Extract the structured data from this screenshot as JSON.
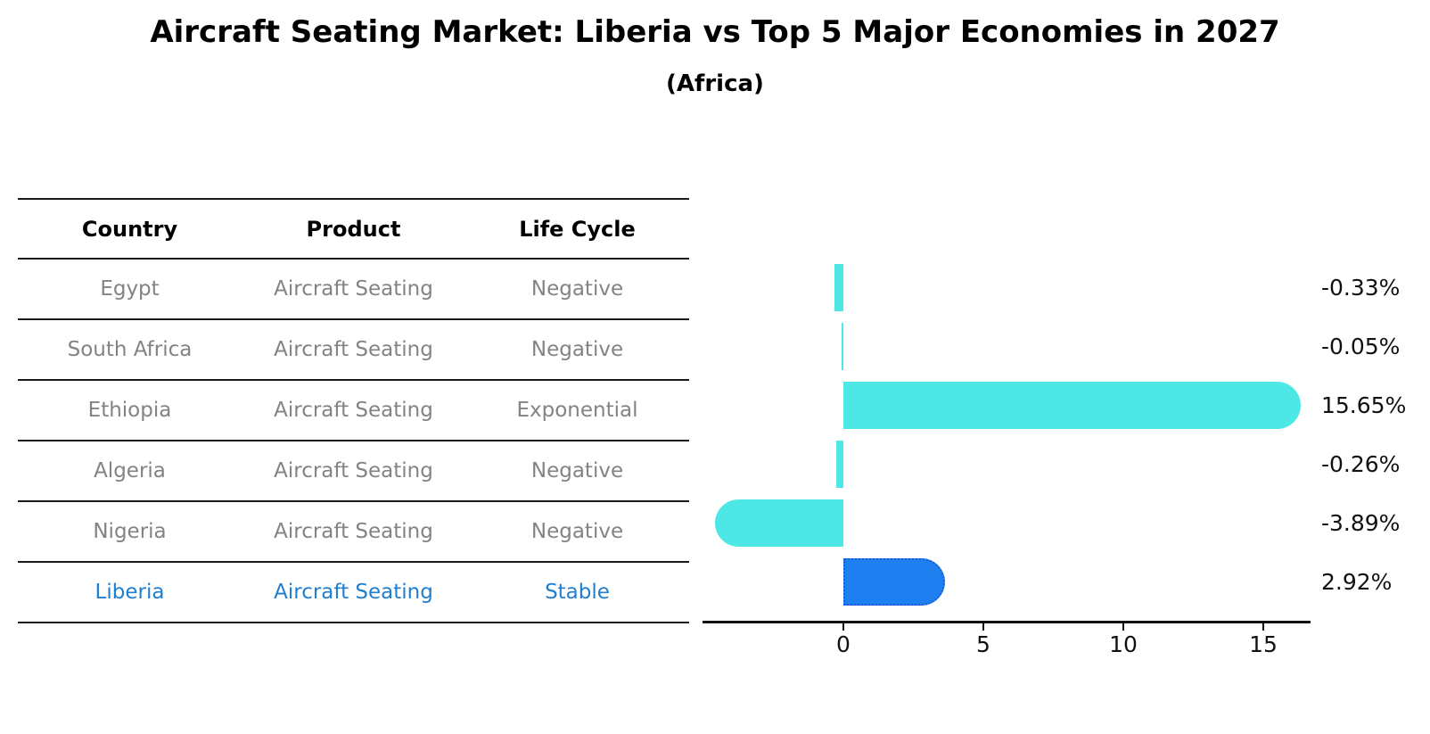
{
  "title": "Aircraft Seating Market: Liberia vs Top 5 Major Economies in 2027",
  "subtitle": "(Africa)",
  "table": {
    "headers": [
      "Country",
      "Product",
      "Life Cycle"
    ],
    "rows": [
      {
        "country": "Egypt",
        "product": "Aircraft Seating",
        "life_cycle": "Negative",
        "highlight": false
      },
      {
        "country": "South Africa",
        "product": "Aircraft Seating",
        "life_cycle": "Negative",
        "highlight": false
      },
      {
        "country": "Ethiopia",
        "product": "Aircraft Seating",
        "life_cycle": "Exponential",
        "highlight": false
      },
      {
        "country": "Algeria",
        "product": "Aircraft Seating",
        "life_cycle": "Negative",
        "highlight": false
      },
      {
        "country": "Nigeria",
        "product": "Aircraft Seating",
        "life_cycle": "Negative",
        "highlight": false
      },
      {
        "country": "Liberia",
        "product": "Aircraft Seating",
        "life_cycle": "Stable",
        "highlight": true
      }
    ]
  },
  "chart_data": {
    "type": "bar",
    "orientation": "horizontal",
    "categories": [
      "Egypt",
      "South Africa",
      "Ethiopia",
      "Algeria",
      "Nigeria",
      "Liberia"
    ],
    "values": [
      -0.33,
      -0.05,
      15.65,
      -0.26,
      -3.89,
      2.92
    ],
    "value_labels": [
      "-0.33%",
      "-0.05%",
      "15.65%",
      "-0.26%",
      "-3.89%",
      "2.92%"
    ],
    "xticks": [
      0,
      5,
      10,
      15
    ],
    "xlim": [
      -5,
      16.7
    ],
    "grid": false,
    "legend": "none",
    "highlight_index": 5
  },
  "colors": {
    "bar_fill": "#4DE8E5",
    "highlight_fill": "#1E80F0",
    "highlight_border": "#1A5FD0",
    "highlight_text": "#1F7FD0",
    "body_text": "#838383",
    "line": "#1a1a1a"
  }
}
